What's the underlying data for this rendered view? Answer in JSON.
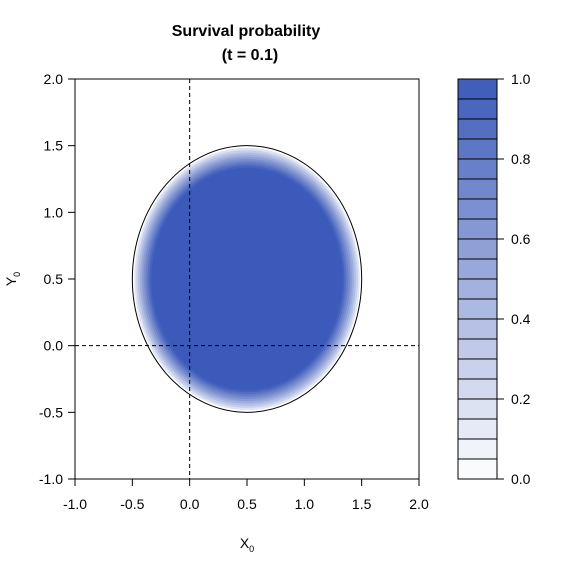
{
  "chart_data": {
    "type": "heatmap",
    "title_line1": "Survival probability",
    "title_line2": "(t = 0.1)",
    "xlabel": "X",
    "xlabel_sub": "0",
    "ylabel": "Y",
    "ylabel_sub": "0",
    "xlim": [
      -1.0,
      2.0
    ],
    "ylim": [
      -1.0,
      2.0
    ],
    "x_ticks": [
      "-1.0",
      "-0.5",
      "0.0",
      "0.5",
      "1.0",
      "1.5",
      "2.0"
    ],
    "y_ticks": [
      "-1.0",
      "-0.5",
      "0.0",
      "0.5",
      "1.0",
      "1.5",
      "2.0"
    ],
    "domain": {
      "shape": "ellipse",
      "center": [
        0.5,
        0.5
      ],
      "radius_x": 1.0,
      "radius_y": 1.0
    },
    "value_peak": 1.0,
    "value_boundary": 0.0,
    "reference_lines": {
      "vertical_x": 0.0,
      "horizontal_y": 0.0,
      "style": "dashed"
    },
    "colorbar": {
      "range": [
        0.0,
        1.0
      ],
      "levels": 20,
      "ticks": [
        "0.0",
        "0.2",
        "0.4",
        "0.6",
        "0.8",
        "1.0"
      ],
      "low_color": "#ffffff",
      "high_color": "#3c5ab9"
    },
    "grid": false
  }
}
